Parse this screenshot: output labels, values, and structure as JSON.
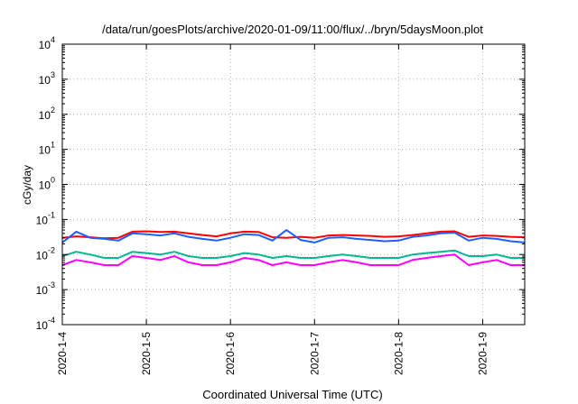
{
  "chart_data": {
    "type": "line",
    "title": "/data/run/goesPlots/archive/2020-01-09/11:00/flux/../bryn/5daysMoon.plot",
    "xlabel": "Coordinated Universal Time (UTC)",
    "ylabel": "cGy/day",
    "yscale": "log",
    "ylim": [
      0.0001,
      10000
    ],
    "xlim": [
      "2020-01-04T00:00",
      "2020-01-09T12:00"
    ],
    "grid": true,
    "legend": "none",
    "y_ticks": [
      {
        "base": "10",
        "exp": "-4",
        "value": 0.0001
      },
      {
        "base": "10",
        "exp": "-3",
        "value": 0.001
      },
      {
        "base": "10",
        "exp": "-2",
        "value": 0.01
      },
      {
        "base": "10",
        "exp": "-1",
        "value": 0.1
      },
      {
        "base": "10",
        "exp": "0",
        "value": 1
      },
      {
        "base": "10",
        "exp": "1",
        "value": 10
      },
      {
        "base": "10",
        "exp": "2",
        "value": 100
      },
      {
        "base": "10",
        "exp": "3",
        "value": 1000
      },
      {
        "base": "10",
        "exp": "4",
        "value": 10000
      }
    ],
    "x_ticks": [
      {
        "label": "2020-1-4",
        "value": "2020-01-04T00:00"
      },
      {
        "label": "2020-1-5",
        "value": "2020-01-05T00:00"
      },
      {
        "label": "2020-1-6",
        "value": "2020-01-06T00:00"
      },
      {
        "label": "2020-1-7",
        "value": "2020-01-07T00:00"
      },
      {
        "label": "2020-1-8",
        "value": "2020-01-08T00:00"
      },
      {
        "label": "2020-1-9",
        "value": "2020-01-09T00:00"
      }
    ],
    "series": [
      {
        "color": "#ff0000",
        "x": [
          "2020-01-04T00:00",
          "2020-01-04T04:00",
          "2020-01-04T08:00",
          "2020-01-04T12:00",
          "2020-01-04T16:00",
          "2020-01-04T20:00",
          "2020-01-05T00:00",
          "2020-01-05T04:00",
          "2020-01-05T08:00",
          "2020-01-05T12:00",
          "2020-01-05T16:00",
          "2020-01-05T20:00",
          "2020-01-06T00:00",
          "2020-01-06T04:00",
          "2020-01-06T08:00",
          "2020-01-06T12:00",
          "2020-01-06T16:00",
          "2020-01-06T20:00",
          "2020-01-07T00:00",
          "2020-01-07T04:00",
          "2020-01-07T08:00",
          "2020-01-07T12:00",
          "2020-01-07T16:00",
          "2020-01-07T20:00",
          "2020-01-08T00:00",
          "2020-01-08T04:00",
          "2020-01-08T08:00",
          "2020-01-08T12:00",
          "2020-01-08T16:00",
          "2020-01-08T20:00",
          "2020-01-09T00:00",
          "2020-01-09T04:00",
          "2020-01-09T08:00",
          "2020-01-09T12:00"
        ],
        "values": [
          0.03,
          0.033,
          0.031,
          0.029,
          0.03,
          0.045,
          0.046,
          0.044,
          0.045,
          0.04,
          0.036,
          0.033,
          0.04,
          0.045,
          0.044,
          0.031,
          0.03,
          0.032,
          0.03,
          0.035,
          0.036,
          0.035,
          0.034,
          0.032,
          0.033,
          0.036,
          0.04,
          0.045,
          0.046,
          0.032,
          0.035,
          0.034,
          0.032,
          0.031
        ]
      },
      {
        "color": "#1f5fff",
        "x": [
          "2020-01-04T00:00",
          "2020-01-04T04:00",
          "2020-01-04T08:00",
          "2020-01-04T12:00",
          "2020-01-04T16:00",
          "2020-01-04T20:00",
          "2020-01-05T00:00",
          "2020-01-05T04:00",
          "2020-01-05T08:00",
          "2020-01-05T12:00",
          "2020-01-05T16:00",
          "2020-01-05T20:00",
          "2020-01-06T00:00",
          "2020-01-06T04:00",
          "2020-01-06T08:00",
          "2020-01-06T12:00",
          "2020-01-06T16:00",
          "2020-01-06T20:00",
          "2020-01-07T00:00",
          "2020-01-07T04:00",
          "2020-01-07T08:00",
          "2020-01-07T12:00",
          "2020-01-07T16:00",
          "2020-01-07T20:00",
          "2020-01-08T00:00",
          "2020-01-08T04:00",
          "2020-01-08T08:00",
          "2020-01-08T12:00",
          "2020-01-08T16:00",
          "2020-01-08T20:00",
          "2020-01-09T00:00",
          "2020-01-09T04:00",
          "2020-01-09T08:00",
          "2020-01-09T12:00"
        ],
        "values": [
          0.022,
          0.045,
          0.03,
          0.028,
          0.025,
          0.04,
          0.038,
          0.035,
          0.04,
          0.032,
          0.028,
          0.025,
          0.03,
          0.038,
          0.036,
          0.025,
          0.05,
          0.026,
          0.022,
          0.03,
          0.031,
          0.028,
          0.026,
          0.024,
          0.025,
          0.032,
          0.035,
          0.04,
          0.042,
          0.025,
          0.03,
          0.028,
          0.024,
          0.022
        ]
      },
      {
        "color": "#00b894",
        "x": [
          "2020-01-04T00:00",
          "2020-01-04T04:00",
          "2020-01-04T08:00",
          "2020-01-04T12:00",
          "2020-01-04T16:00",
          "2020-01-04T20:00",
          "2020-01-05T00:00",
          "2020-01-05T04:00",
          "2020-01-05T08:00",
          "2020-01-05T12:00",
          "2020-01-05T16:00",
          "2020-01-05T20:00",
          "2020-01-06T00:00",
          "2020-01-06T04:00",
          "2020-01-06T08:00",
          "2020-01-06T12:00",
          "2020-01-06T16:00",
          "2020-01-06T20:00",
          "2020-01-07T00:00",
          "2020-01-07T04:00",
          "2020-01-07T08:00",
          "2020-01-07T12:00",
          "2020-01-07T16:00",
          "2020-01-07T20:00",
          "2020-01-08T00:00",
          "2020-01-08T04:00",
          "2020-01-08T08:00",
          "2020-01-08T12:00",
          "2020-01-08T16:00",
          "2020-01-08T20:00",
          "2020-01-09T00:00",
          "2020-01-09T04:00",
          "2020-01-09T08:00",
          "2020-01-09T12:00"
        ],
        "values": [
          0.009,
          0.012,
          0.01,
          0.008,
          0.008,
          0.012,
          0.011,
          0.01,
          0.012,
          0.009,
          0.008,
          0.008,
          0.009,
          0.011,
          0.01,
          0.008,
          0.009,
          0.008,
          0.008,
          0.009,
          0.01,
          0.009,
          0.008,
          0.008,
          0.008,
          0.01,
          0.011,
          0.012,
          0.013,
          0.009,
          0.009,
          0.01,
          0.008,
          0.008
        ]
      },
      {
        "color": "#ff00ff",
        "x": [
          "2020-01-04T00:00",
          "2020-01-04T04:00",
          "2020-01-04T08:00",
          "2020-01-04T12:00",
          "2020-01-04T16:00",
          "2020-01-04T20:00",
          "2020-01-05T00:00",
          "2020-01-05T04:00",
          "2020-01-05T08:00",
          "2020-01-05T12:00",
          "2020-01-05T16:00",
          "2020-01-05T20:00",
          "2020-01-06T00:00",
          "2020-01-06T04:00",
          "2020-01-06T08:00",
          "2020-01-06T12:00",
          "2020-01-06T16:00",
          "2020-01-06T20:00",
          "2020-01-07T00:00",
          "2020-01-07T04:00",
          "2020-01-07T08:00",
          "2020-01-07T12:00",
          "2020-01-07T16:00",
          "2020-01-07T20:00",
          "2020-01-08T00:00",
          "2020-01-08T04:00",
          "2020-01-08T08:00",
          "2020-01-08T12:00",
          "2020-01-08T16:00",
          "2020-01-08T20:00",
          "2020-01-09T00:00",
          "2020-01-09T04:00",
          "2020-01-09T08:00",
          "2020-01-09T12:00"
        ],
        "values": [
          0.005,
          0.007,
          0.006,
          0.005,
          0.005,
          0.009,
          0.008,
          0.007,
          0.009,
          0.006,
          0.005,
          0.005,
          0.006,
          0.008,
          0.007,
          0.005,
          0.006,
          0.005,
          0.005,
          0.006,
          0.007,
          0.006,
          0.005,
          0.005,
          0.005,
          0.007,
          0.008,
          0.009,
          0.01,
          0.005,
          0.006,
          0.007,
          0.005,
          0.005
        ]
      }
    ]
  }
}
